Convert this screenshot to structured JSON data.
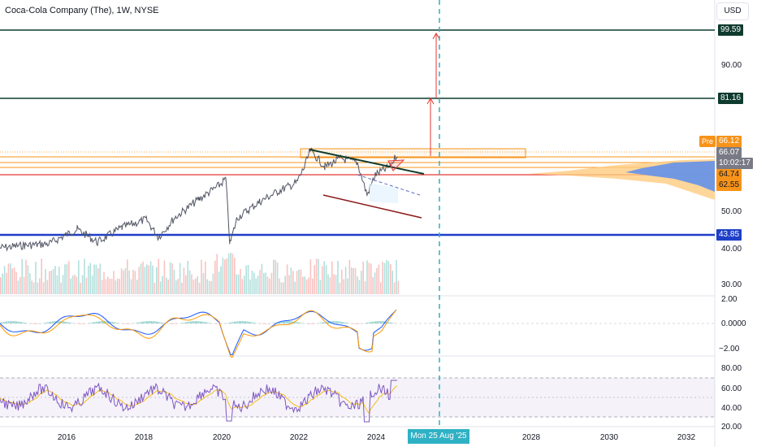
{
  "header": {
    "title": "Coca-Cola Company (The), 1W, NYSE",
    "currency": "USD"
  },
  "price_levels": {
    "l1": "99.59",
    "l2": "81.16",
    "pre_tag": "Pre",
    "pre_price": "66.12",
    "last_price": "66.07",
    "countdown": "10:02:17",
    "l3": "64.74",
    "l4": "62.55",
    "l5": "43.85"
  },
  "colors": {
    "dark_level": "#0f3b2e",
    "blue_level": "#1e3fc8",
    "red_level": "#e53935",
    "orange": "#f7931a",
    "cursor": "#2fb1c4",
    "candle": "#505463",
    "macd": "#2962ff",
    "signal": "#ff9800",
    "rsi": "#7e57c2"
  },
  "price_axis": [
    "90.00",
    "50.00",
    "40.00",
    "30.00"
  ],
  "macd_axis": [
    "2.00",
    "0.0000",
    "−2.00"
  ],
  "rsi_axis": [
    "80.00",
    "60.00",
    "40.00",
    "20.00"
  ],
  "time_axis": [
    "2016",
    "2018",
    "2020",
    "2022",
    "2024",
    "2028",
    "2030",
    "2032"
  ],
  "crosshair_date": "Mon 25 Aug '25"
}
